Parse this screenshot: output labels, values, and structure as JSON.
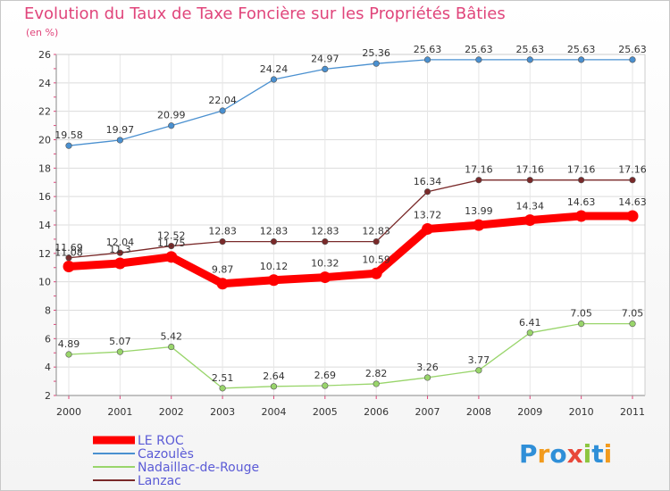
{
  "title": "Evolution du Taux de Taxe Foncière sur les Propriétés Bâties",
  "unit": "(en %)",
  "logo": {
    "text": "Proxiti",
    "letters": [
      {
        "ch": "P",
        "color": "#2f8fd8"
      },
      {
        "ch": "r",
        "color": "#f29b1d"
      },
      {
        "ch": "o",
        "color": "#2f8fd8"
      },
      {
        "ch": "x",
        "color": "#e8483a"
      },
      {
        "ch": "i",
        "color": "#8cc63f"
      },
      {
        "ch": "t",
        "color": "#2f8fd8"
      },
      {
        "ch": "i",
        "color": "#f29b1d"
      }
    ]
  },
  "chart_data": {
    "type": "line",
    "title": "Evolution du Taux de Taxe Foncière sur les Propriétés Bâties",
    "xlabel": "",
    "ylabel": "(en %)",
    "x": [
      "2000",
      "2001",
      "2002",
      "2003",
      "2004",
      "2005",
      "2006",
      "2007",
      "2008",
      "2009",
      "2010",
      "2011"
    ],
    "ylim": [
      2,
      26
    ],
    "yticks": [
      "2",
      "4",
      "6",
      "8",
      "10",
      "12",
      "14",
      "16",
      "18",
      "20",
      "22",
      "24",
      "26"
    ],
    "grid": true,
    "legend": "bottom-left",
    "series": [
      {
        "name": "LE ROC",
        "color": "#ff0000",
        "values": [
          11.08,
          11.3,
          11.75,
          9.87,
          10.12,
          10.32,
          10.59,
          13.72,
          13.99,
          14.34,
          14.63,
          14.63
        ],
        "labels": [
          "11.08",
          "11.3",
          "11.75",
          "9.87",
          "10.12",
          "10.32",
          "10.59",
          "13.72",
          "13.99",
          "14.34",
          "14.63",
          "14.63"
        ]
      },
      {
        "name": "Cazoulès",
        "color": "#4a90d0",
        "values": [
          19.58,
          19.97,
          20.99,
          22.04,
          24.24,
          24.97,
          25.36,
          25.63,
          25.63,
          25.63,
          25.63,
          25.63
        ],
        "labels": [
          "19.58",
          "19.97",
          "20.99",
          "22.04",
          "24.24",
          "24.97",
          "25.36",
          "25.63",
          "25.63",
          "25.63",
          "25.63",
          "25.63"
        ]
      },
      {
        "name": "Nadaillac-de-Rouge",
        "color": "#99d56b",
        "values": [
          4.89,
          5.07,
          5.42,
          2.51,
          2.64,
          2.69,
          2.82,
          3.26,
          3.77,
          6.41,
          7.05,
          7.05
        ],
        "labels": [
          "4.89",
          "5.07",
          "5.42",
          "2.51",
          "2.64",
          "2.69",
          "2.82",
          "3.26",
          "3.77",
          "6.41",
          "7.05",
          "7.05"
        ]
      },
      {
        "name": "Lanzac",
        "color": "#7a2a2a",
        "values": [
          11.69,
          12.04,
          12.52,
          12.83,
          12.83,
          12.83,
          12.83,
          16.34,
          17.16,
          17.16,
          17.16,
          17.16
        ],
        "labels": [
          "11.69",
          "12.04",
          "12.52",
          "12.83",
          "12.83",
          "12.83",
          "12.83",
          "16.34",
          "17.16",
          "17.16",
          "17.16",
          "17.16"
        ]
      }
    ]
  }
}
